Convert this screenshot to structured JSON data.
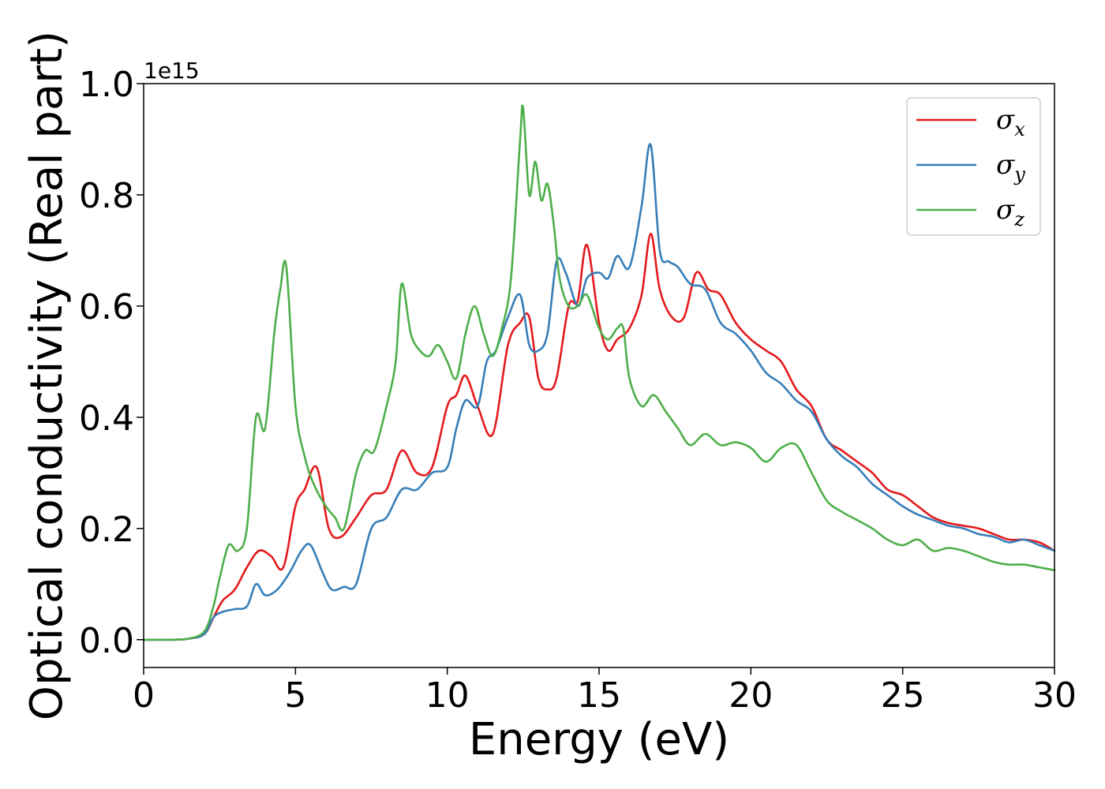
{
  "chart_data": {
    "type": "line",
    "xlabel": "Energy (eV)",
    "ylabel": "Optical conductivity (Real part)",
    "y_offset_label": "1e15",
    "xlim": [
      0,
      30
    ],
    "ylim": [
      -0.05,
      1.0
    ],
    "x_ticks": [
      0,
      5,
      10,
      15,
      20,
      25,
      30
    ],
    "x_tick_labels": [
      "0",
      "5",
      "10",
      "15",
      "20",
      "25",
      "30"
    ],
    "y_ticks": [
      0.0,
      0.2,
      0.4,
      0.6,
      0.8,
      1.0
    ],
    "y_tick_labels": [
      "0.0",
      "0.2",
      "0.4",
      "0.6",
      "0.8",
      "1.0"
    ],
    "grid": false,
    "legend_position": "top-right",
    "series": [
      {
        "name": "σx",
        "symbol": "σ",
        "subscript": "x",
        "color": "#e41a1c",
        "x": [
          0,
          1,
          1.5,
          2,
          2.3,
          2.6,
          3,
          3.4,
          3.8,
          4.2,
          4.6,
          5,
          5.3,
          5.7,
          6.1,
          6.5,
          7,
          7.5,
          8,
          8.5,
          9,
          9.5,
          10,
          10.3,
          10.6,
          11,
          11.5,
          12,
          12.4,
          12.7,
          13,
          13.3,
          13.6,
          14,
          14.3,
          14.6,
          15,
          15.3,
          15.6,
          16,
          16.4,
          16.7,
          17,
          17.4,
          17.8,
          18.2,
          18.6,
          19,
          19.5,
          20,
          20.5,
          21,
          21.5,
          22,
          22.5,
          23,
          23.5,
          24,
          24.5,
          25,
          25.5,
          26,
          26.5,
          27,
          27.5,
          28,
          28.5,
          29,
          29.5,
          30
        ],
        "y": [
          0,
          0,
          0.002,
          0.01,
          0.04,
          0.07,
          0.09,
          0.13,
          0.16,
          0.15,
          0.13,
          0.24,
          0.27,
          0.31,
          0.2,
          0.185,
          0.22,
          0.26,
          0.27,
          0.34,
          0.3,
          0.31,
          0.42,
          0.44,
          0.475,
          0.42,
          0.37,
          0.53,
          0.57,
          0.58,
          0.47,
          0.45,
          0.47,
          0.6,
          0.61,
          0.71,
          0.57,
          0.52,
          0.54,
          0.56,
          0.62,
          0.73,
          0.63,
          0.58,
          0.58,
          0.66,
          0.63,
          0.62,
          0.57,
          0.54,
          0.52,
          0.5,
          0.45,
          0.42,
          0.36,
          0.34,
          0.32,
          0.3,
          0.27,
          0.26,
          0.24,
          0.22,
          0.21,
          0.205,
          0.2,
          0.19,
          0.18,
          0.18,
          0.175,
          0.16
        ]
      },
      {
        "name": "σy",
        "symbol": "σ",
        "subscript": "y",
        "color": "#377eb8",
        "x": [
          0,
          1,
          1.5,
          2,
          2.3,
          2.6,
          3,
          3.4,
          3.7,
          4,
          4.4,
          4.8,
          5.2,
          5.5,
          5.9,
          6.2,
          6.6,
          7,
          7.5,
          8,
          8.5,
          9,
          9.5,
          10,
          10.3,
          10.6,
          11,
          11.3,
          11.6,
          12,
          12.4,
          12.7,
          13,
          13.3,
          13.6,
          13.9,
          14.3,
          14.6,
          15,
          15.3,
          15.6,
          16,
          16.4,
          16.7,
          17,
          17.3,
          17.6,
          18,
          18.5,
          19,
          19.5,
          20,
          20.5,
          21,
          21.5,
          22,
          22.5,
          23,
          23.5,
          24,
          24.5,
          25,
          25.5,
          26,
          26.5,
          27,
          27.5,
          28,
          28.5,
          29,
          29.5,
          30
        ],
        "y": [
          0,
          0,
          0.002,
          0.01,
          0.04,
          0.05,
          0.055,
          0.06,
          0.1,
          0.08,
          0.09,
          0.12,
          0.16,
          0.17,
          0.12,
          0.09,
          0.095,
          0.1,
          0.2,
          0.22,
          0.27,
          0.27,
          0.3,
          0.31,
          0.38,
          0.43,
          0.42,
          0.5,
          0.52,
          0.58,
          0.62,
          0.53,
          0.52,
          0.55,
          0.68,
          0.66,
          0.6,
          0.65,
          0.66,
          0.65,
          0.69,
          0.67,
          0.78,
          0.89,
          0.7,
          0.68,
          0.67,
          0.64,
          0.63,
          0.57,
          0.55,
          0.52,
          0.48,
          0.46,
          0.43,
          0.41,
          0.36,
          0.33,
          0.31,
          0.28,
          0.26,
          0.24,
          0.225,
          0.215,
          0.205,
          0.2,
          0.19,
          0.185,
          0.175,
          0.18,
          0.17,
          0.16
        ]
      },
      {
        "name": "σz",
        "symbol": "σ",
        "subscript": "z",
        "color": "#4daf4a",
        "x": [
          0,
          1,
          1.5,
          2,
          2.3,
          2.5,
          2.8,
          3.1,
          3.4,
          3.7,
          4,
          4.3,
          4.5,
          4.7,
          5,
          5.3,
          5.6,
          6,
          6.3,
          6.6,
          7,
          7.3,
          7.6,
          8,
          8.3,
          8.5,
          8.8,
          9.1,
          9.4,
          9.7,
          10,
          10.3,
          10.6,
          10.9,
          11.2,
          11.5,
          11.8,
          12.1,
          12.4,
          12.5,
          12.7,
          12.9,
          13.1,
          13.3,
          13.5,
          13.7,
          14,
          14.3,
          14.6,
          15,
          15.3,
          15.6,
          15.8,
          16,
          16.4,
          16.8,
          17.2,
          17.6,
          18,
          18.5,
          19,
          19.5,
          20,
          20.5,
          21,
          21.5,
          22,
          22.5,
          23,
          23.5,
          24,
          24.5,
          25,
          25.5,
          26,
          26.5,
          27,
          27.5,
          28,
          28.5,
          29,
          29.5,
          30
        ],
        "y": [
          0,
          0,
          0.002,
          0.015,
          0.06,
          0.11,
          0.17,
          0.16,
          0.2,
          0.4,
          0.38,
          0.55,
          0.63,
          0.67,
          0.42,
          0.33,
          0.28,
          0.24,
          0.22,
          0.2,
          0.3,
          0.34,
          0.34,
          0.42,
          0.5,
          0.64,
          0.55,
          0.52,
          0.51,
          0.53,
          0.5,
          0.47,
          0.55,
          0.6,
          0.55,
          0.51,
          0.56,
          0.65,
          0.9,
          0.955,
          0.8,
          0.86,
          0.79,
          0.82,
          0.75,
          0.65,
          0.6,
          0.6,
          0.62,
          0.56,
          0.54,
          0.56,
          0.56,
          0.47,
          0.42,
          0.44,
          0.41,
          0.38,
          0.35,
          0.37,
          0.35,
          0.355,
          0.345,
          0.32,
          0.345,
          0.35,
          0.3,
          0.25,
          0.23,
          0.215,
          0.2,
          0.18,
          0.17,
          0.18,
          0.16,
          0.165,
          0.16,
          0.15,
          0.14,
          0.135,
          0.135,
          0.13,
          0.125
        ]
      }
    ]
  }
}
